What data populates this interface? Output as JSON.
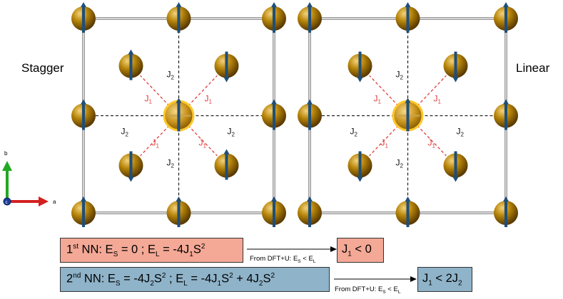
{
  "panels": {
    "left_label": "Stagger",
    "right_label": "Linear"
  },
  "couplings": {
    "j1": "J",
    "j1_sub": "1",
    "j2": "J",
    "j2_sub": "2"
  },
  "axes": {
    "b": "b",
    "a": "a",
    "c": "c"
  },
  "equations": {
    "row1": {
      "ord": "1",
      "ord_sup": "st",
      "nn": " NN: E",
      "s_sub": "S",
      "eq1": " = 0  ; E",
      "l_sub": "L",
      "eq2": " = -4J",
      "j_sub": "1",
      "s_sym": "S",
      "sq": "2"
    },
    "row1_note": {
      "text": "From DFT+U: E",
      "s_sub": "S",
      "lt": " < E",
      "l_sub": "L"
    },
    "row1_result": {
      "j": "J",
      "j_sub": "1",
      "rest": " < 0"
    },
    "row2": {
      "ord": "2",
      "ord_sup": "nd",
      "nn": " NN: E",
      "s_sub": "S",
      "eq1": " = -4J",
      "j2a_sub": "2",
      "s1": "S",
      "sq1": "2",
      "semi": "  ; E",
      "l_sub": "L",
      "eq2": " = -4J",
      "j1_sub": "1",
      "s2": "S",
      "sq2": "2",
      "plus": " + 4J",
      "j2b_sub": "2",
      "s3": "S",
      "sq3": "2"
    },
    "row2_note": {
      "text": "From DFT+U: E",
      "s_sub": "S",
      "lt": " < E",
      "l_sub": "L"
    },
    "row2_result": {
      "j": "J",
      "j_sub": "1",
      "lt": " < 2J",
      "j2_sub": "2"
    }
  },
  "colors": {
    "atom": "#b8860b",
    "atom_dark": "#7a5200",
    "spin": "#1f4e79",
    "center_ring": "#ffc82a",
    "j1_line": "#e03c3c",
    "j2_line": "#222222",
    "pink_box": "#f4a896",
    "blue_box": "#8fb3c9"
  },
  "panel_config": [
    {
      "name": "stagger",
      "corner_spins": [
        "up",
        "up",
        "up",
        "up"
      ],
      "center_spin": "up",
      "inner_spins": [
        "up",
        "down",
        "down",
        "up"
      ],
      "edge_spins": [
        "up",
        "up",
        "up",
        "up"
      ]
    },
    {
      "name": "linear",
      "corner_spins": [
        "up",
        "up",
        "up",
        "up"
      ],
      "center_spin": "up",
      "inner_spins": [
        "down",
        "down",
        "down",
        "down"
      ],
      "edge_spins": [
        "up",
        "up",
        "up",
        "up"
      ]
    }
  ]
}
